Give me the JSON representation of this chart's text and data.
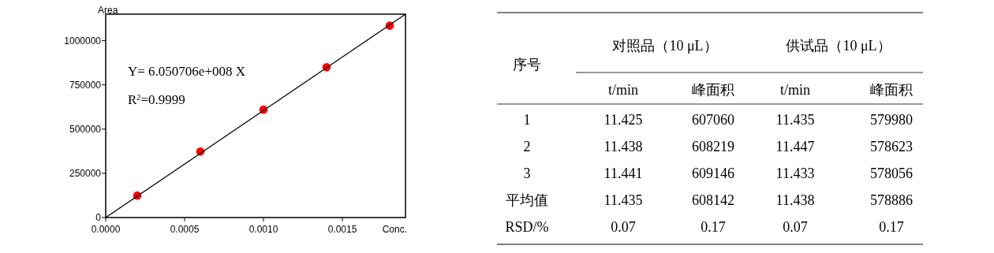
{
  "chart_data": [
    {
      "type": "scatter",
      "xlabel": "Conc.",
      "ylabel": "Area",
      "xlim": [
        0,
        0.0019
      ],
      "xticks": [
        {
          "value": 0,
          "label": "0.0000"
        },
        {
          "value": 0.0005,
          "label": "0.0005"
        },
        {
          "value": 0.001,
          "label": "0.0010"
        },
        {
          "value": 0.0015,
          "label": "0.0015"
        }
      ],
      "ylim": [
        0,
        1150000
      ],
      "yticks": [
        0,
        250000,
        500000,
        750000,
        1000000
      ],
      "grid": false,
      "marker": "circle",
      "x": [
        0.0002,
        0.0006,
        0.001,
        0.0014,
        0.0018
      ],
      "series": [
        {
          "color": "#ff0000",
          "values": [
            124000,
            373000,
            610000,
            850000,
            1085000
          ]
        },
        {
          "type": "line",
          "color": "#000000",
          "x": [
            0,
            0.0019
          ],
          "values": [
            0,
            1150000
          ],
          "marker": "none",
          "line_style": "solid"
        }
      ],
      "annotations": [
        "Y= 6.050706e+008 X",
        "R$^{2}$=0.9999"
      ]
    },
    {
      "type": "other",
      "annotations": [
        "序号",
        "对照品（10 μL）",
        "供试品（10 μL）"
      ],
      "categories": [
        "t/min",
        "峰面积",
        "t/min",
        "峰面积"
      ],
      "y_categories": [
        "1",
        "2",
        "3",
        "平均值",
        "RSD/%"
      ],
      "cell_labels": [
        [
          "11.425",
          "607060",
          "11.435",
          "579980"
        ],
        [
          "11.438",
          "608219",
          "11.447",
          "578623"
        ],
        [
          "11.441",
          "609146",
          "11.433",
          "578056"
        ],
        [
          "11.435",
          "608142",
          "11.438",
          "578886"
        ],
        [
          "0.07",
          "0.17",
          "0.07",
          "0.17"
        ]
      ]
    }
  ]
}
